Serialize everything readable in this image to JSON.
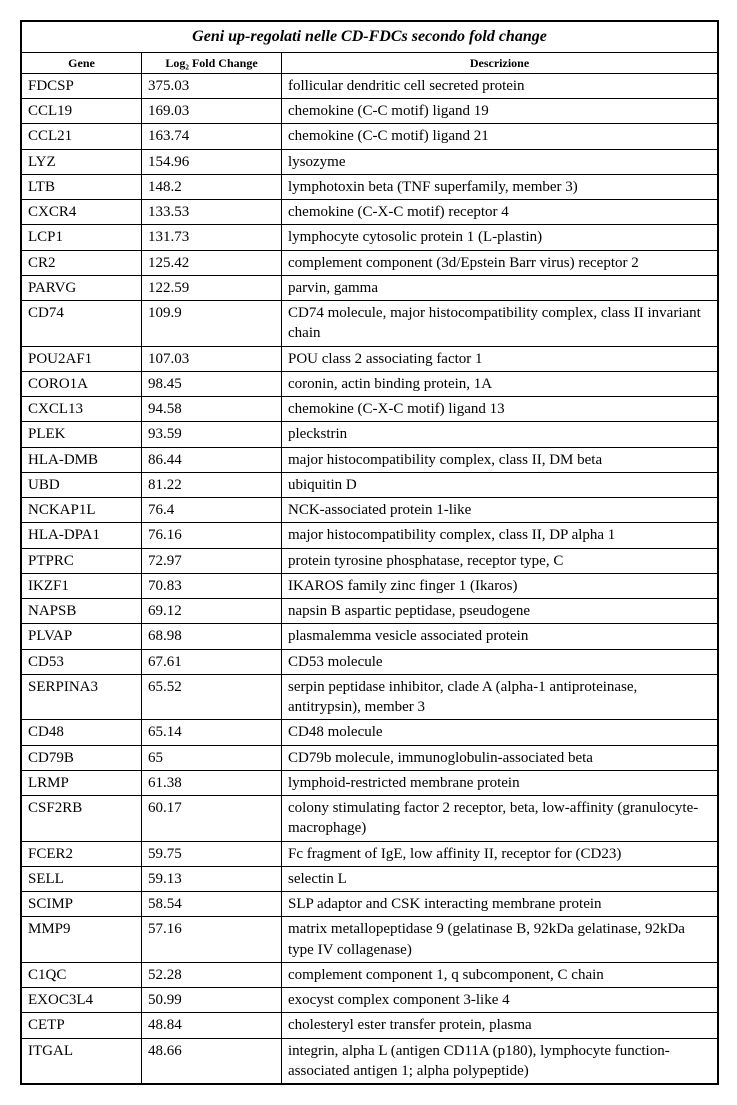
{
  "title": "Geni up-regolati nelle CD-FDCs secondo fold change",
  "columns": {
    "gene": "Gene",
    "fold": "Log₂ Fold Change",
    "desc": "Descrizione"
  },
  "rows": [
    {
      "gene": "FDCSP",
      "fold": "375.03",
      "desc": "follicular dendritic cell secreted protein"
    },
    {
      "gene": "CCL19",
      "fold": "169.03",
      "desc": "chemokine (C-C motif) ligand 19"
    },
    {
      "gene": "CCL21",
      "fold": "163.74",
      "desc": "chemokine (C-C motif) ligand 21"
    },
    {
      "gene": "LYZ",
      "fold": "154.96",
      "desc": "lysozyme"
    },
    {
      "gene": "LTB",
      "fold": "148.2",
      "desc": "lymphotoxin beta (TNF superfamily, member 3)"
    },
    {
      "gene": "CXCR4",
      "fold": "133.53",
      "desc": "chemokine (C-X-C motif) receptor 4"
    },
    {
      "gene": "LCP1",
      "fold": "131.73",
      "desc": "lymphocyte cytosolic protein 1 (L-plastin)"
    },
    {
      "gene": "CR2",
      "fold": "125.42",
      "desc": "complement component (3d/Epstein Barr virus) receptor 2"
    },
    {
      "gene": "PARVG",
      "fold": "122.59",
      "desc": "parvin, gamma"
    },
    {
      "gene": "CD74",
      "fold": "109.9",
      "desc": "CD74 molecule, major histocompatibility complex, class II invariant chain"
    },
    {
      "gene": "POU2AF1",
      "fold": "107.03",
      "desc": "POU class 2 associating factor 1"
    },
    {
      "gene": "CORO1A",
      "fold": "98.45",
      "desc": "coronin, actin binding protein, 1A"
    },
    {
      "gene": "CXCL13",
      "fold": "94.58",
      "desc": "chemokine (C-X-C motif) ligand 13"
    },
    {
      "gene": "PLEK",
      "fold": "93.59",
      "desc": "pleckstrin"
    },
    {
      "gene": "HLA-DMB",
      "fold": "86.44",
      "desc": "major histocompatibility complex, class II, DM beta"
    },
    {
      "gene": "UBD",
      "fold": "81.22",
      "desc": "ubiquitin D"
    },
    {
      "gene": "NCKAP1L",
      "fold": "76.4",
      "desc": "NCK-associated protein 1-like"
    },
    {
      "gene": "HLA-DPA1",
      "fold": "76.16",
      "desc": "major histocompatibility complex, class II, DP alpha 1"
    },
    {
      "gene": "PTPRC",
      "fold": "72.97",
      "desc": "protein tyrosine phosphatase, receptor type, C"
    },
    {
      "gene": "IKZF1",
      "fold": "70.83",
      "desc": "IKAROS family zinc finger 1 (Ikaros)"
    },
    {
      "gene": "NAPSB",
      "fold": "69.12",
      "desc": "napsin B aspartic peptidase, pseudogene"
    },
    {
      "gene": "PLVAP",
      "fold": "68.98",
      "desc": "plasmalemma vesicle associated protein"
    },
    {
      "gene": "CD53",
      "fold": "67.61",
      "desc": "CD53 molecule"
    },
    {
      "gene": "SERPINA3",
      "fold": "65.52",
      "desc": "serpin peptidase inhibitor, clade A (alpha-1 antiproteinase, antitrypsin), member 3"
    },
    {
      "gene": "CD48",
      "fold": "65.14",
      "desc": "CD48 molecule"
    },
    {
      "gene": "CD79B",
      "fold": "65",
      "desc": "CD79b molecule, immunoglobulin-associated beta"
    },
    {
      "gene": "LRMP",
      "fold": "61.38",
      "desc": "lymphoid-restricted membrane protein"
    },
    {
      "gene": "CSF2RB",
      "fold": "60.17",
      "desc": "colony stimulating factor 2 receptor, beta, low-affinity (granulocyte-macrophage)"
    },
    {
      "gene": "FCER2",
      "fold": "59.75",
      "desc": "Fc fragment of IgE, low affinity II, receptor for (CD23)"
    },
    {
      "gene": "SELL",
      "fold": "59.13",
      "desc": "selectin L"
    },
    {
      "gene": "SCIMP",
      "fold": "58.54",
      "desc": "SLP adaptor and CSK interacting membrane protein"
    },
    {
      "gene": "MMP9",
      "fold": "57.16",
      "desc": "matrix metallopeptidase 9 (gelatinase B, 92kDa gelatinase, 92kDa type IV collagenase)"
    },
    {
      "gene": "C1QC",
      "fold": "52.28",
      "desc": "complement component 1, q subcomponent, C chain"
    },
    {
      "gene": "EXOC3L4",
      "fold": "50.99",
      "desc": "exocyst complex component 3-like 4"
    },
    {
      "gene": "CETP",
      "fold": "48.84",
      "desc": "cholesteryl ester transfer protein, plasma"
    },
    {
      "gene": "ITGAL",
      "fold": "48.66",
      "desc": "integrin, alpha L (antigen CD11A (p180), lymphocyte function-associated antigen 1; alpha polypeptide)"
    }
  ]
}
